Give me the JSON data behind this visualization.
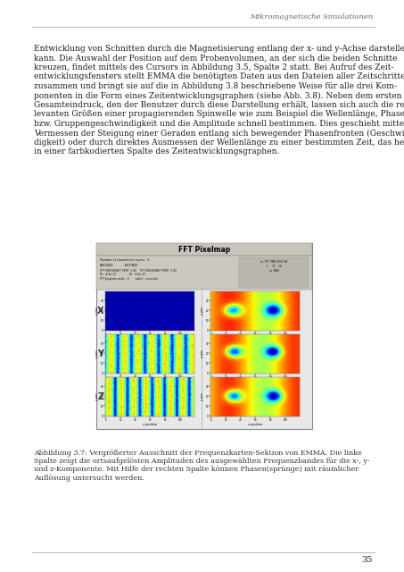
{
  "header_text": "Mikromagnetische Simulationen",
  "page_number": "35",
  "body_lines": [
    "Entwicklung von Schnitten durch die Magnetisierung entlang der x- und y-Achse darstellen",
    "kann. Die Auswahl der Position auf dem Probenvolumen, an der sich die beiden Schnitte",
    "kreuzen, findet mittels des Cursors in Abbildung 3.5, Spalte 2 statt. Bei Aufruf des Zeit-",
    "entwicklungsfensters stellt EMMA die benötigten Daten aus den Dateien aller Zeitschritte",
    "zusammen und bringt sie auf die in Abbildung 3.8 beschriebene Weise für alle drei Kom-",
    "ponenten in die Form eines Zeitentwicklungsgraphen (siehe Abb. 3.8). Neben dem ersten",
    "Gesamteindruck, den der Benutzer durch diese Darstellung erhält, lassen sich auch die re-",
    "levanten Größen einer propagierenden Spinwelle wie zum Beispiel die Wellenlänge, Phasen-",
    "bzw. Gruppengeschwindigkeit und die Amplitude schnell bestimmen. Dies geschieht mittels",
    "Vermessen der Steigung einer Geraden entlang sich bewegender Phasenfronten (Geschwin-",
    "digkeit) oder durch direktes Ausmessen der Wellenlänge zu einer bestimmten Zeit, das heißt",
    "in einer farbkodierten Spalte des Zeitentwicklungsgraphen."
  ],
  "caption_lines": [
    "Abbildung 3.7: Vergrößerter Ausschnitt der Frequenzkarten-Sektion von EMMA. Die linke",
    "Spalte zeigt die ortsaufgelösten Amplituden des ausgewählten Frequenzbandes für die x-, y-",
    "und z-Komponente. Mit Hilfe der rechten Spalte können Phasen(sprünge) mit räumlicher",
    "Auflösung untersucht werden."
  ],
  "bg_color": "#ffffff",
  "text_color": "#1a1a1a",
  "header_color": "#666666",
  "line_color": "#aaaaaa",
  "caption_color": "#333333"
}
